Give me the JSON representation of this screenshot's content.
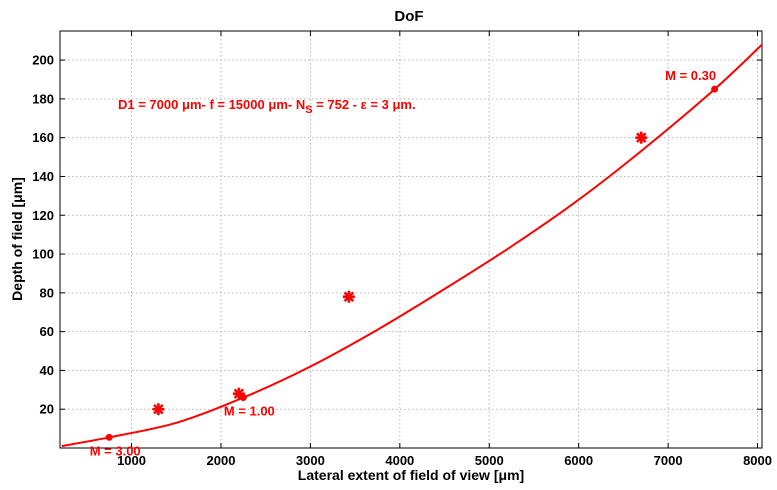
{
  "chart_data": {
    "type": "line",
    "title": "DoF",
    "xlabel": "Lateral extent of field of view [μm]",
    "ylabel": "Depth of field [μm]",
    "xlim": [
      200,
      8050
    ],
    "ylim": [
      0,
      215
    ],
    "x_ticks": [
      1000,
      2000,
      3000,
      4000,
      5000,
      6000,
      7000,
      8000
    ],
    "y_ticks": [
      20,
      40,
      60,
      80,
      100,
      120,
      140,
      160,
      180,
      200
    ],
    "grid": true,
    "color": "#ff0000",
    "series": [
      {
        "kind": "curve",
        "x": [
          220,
          750,
          1500,
          2250,
          3000,
          3750,
          4500,
          5250,
          6000,
          6750,
          7520,
          8050
        ],
        "y": [
          1,
          5.5,
          13,
          26,
          42,
          61,
          82,
          104,
          128,
          155,
          185,
          208
        ]
      },
      {
        "kind": "dot-markers",
        "x": [
          750,
          2250,
          7520
        ],
        "y": [
          5.5,
          26,
          185
        ]
      },
      {
        "kind": "star-markers",
        "x": [
          1300,
          2200,
          3430,
          6700
        ],
        "y": [
          20,
          28,
          78,
          160
        ]
      }
    ],
    "annotations": [
      {
        "text": "M = 3.00",
        "x": 750,
        "y": 5.5,
        "anchor": "below"
      },
      {
        "text": "M = 1.00",
        "x": 2250,
        "y": 26,
        "anchor": "below"
      },
      {
        "text": "M = 0.30",
        "x": 7520,
        "y": 185,
        "anchor": "above"
      }
    ],
    "parameters": {
      "text_prefix": "D1 = 7000 ",
      "text_mid1": "m- f = 15000 ",
      "text_mid2": "m- N",
      "subscript": "S",
      "text_mid3": " = 752 - ",
      "text_mid4": " = 3 ",
      "text_suffix": "m.",
      "mu": "μ",
      "epsilon": "ε"
    }
  }
}
